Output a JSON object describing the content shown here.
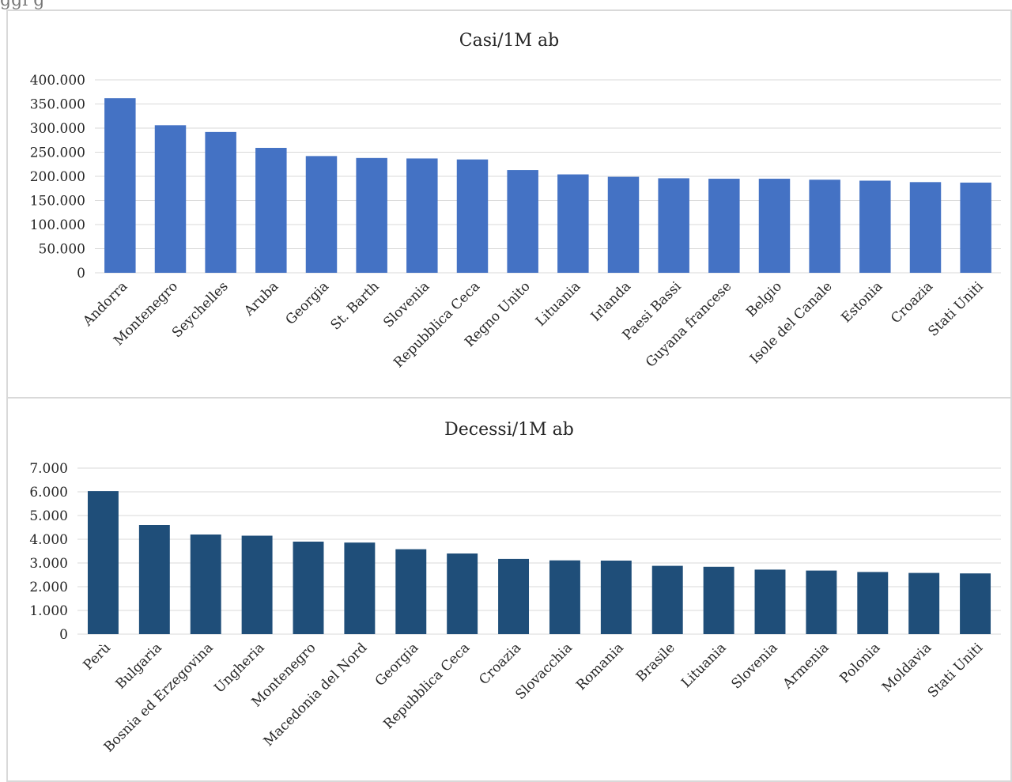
{
  "header_fragment": "ggi                     g",
  "charts": [
    {
      "title": "Casi/1M ab",
      "colors": {
        "bar": "#4472c4",
        "grid": "#d9d9d9",
        "text": "#262626"
      },
      "chart_data": {
        "type": "bar",
        "title": "Casi/1M ab",
        "categories": [
          "Andorra",
          "Montenegro",
          "Seychelles",
          "Aruba",
          "Georgia",
          "St. Barth",
          "Slovenia",
          "Repubblica Ceca",
          "Regno Unito",
          "Lituania",
          "Irlanda",
          "Paesi Bassi",
          "Guyana francese",
          "Belgio",
          "Isole del Canale",
          "Estonia",
          "Croazia",
          "Stati Uniti"
        ],
        "values": [
          362000,
          306000,
          292000,
          259000,
          242000,
          238000,
          237000,
          235000,
          213000,
          204000,
          199000,
          196000,
          195000,
          195000,
          193000,
          191000,
          188000,
          187000
        ],
        "ylim": [
          0,
          400000
        ],
        "yticks": [
          "0",
          "50.000",
          "100.000",
          "150.000",
          "200.000",
          "250.000",
          "300.000",
          "350.000",
          "400.000"
        ],
        "grid": true,
        "legend": "none"
      }
    },
    {
      "title": "Decessi/1M ab",
      "colors": {
        "bar": "#1f4e79",
        "grid": "#d9d9d9",
        "text": "#262626"
      },
      "chart_data": {
        "type": "bar",
        "title": "Decessi/1M ab",
        "categories": [
          "Perù",
          "Bulgaria",
          "Bosnia ed Erzegovina",
          "Ungheria",
          "Montenegro",
          "Macedonia del Nord",
          "Georgia",
          "Repubblica Ceca",
          "Croazia",
          "Slovacchia",
          "Romania",
          "Brasile",
          "Lituania",
          "Slovenia",
          "Armenia",
          "Polonia",
          "Moldavia",
          "Stati Uniti"
        ],
        "values": [
          6030,
          4600,
          4200,
          4150,
          3900,
          3860,
          3580,
          3400,
          3170,
          3110,
          3100,
          2880,
          2840,
          2720,
          2680,
          2620,
          2580,
          2560
        ],
        "ylim": [
          0,
          7000
        ],
        "yticks": [
          "0",
          "1.000",
          "2.000",
          "3.000",
          "4.000",
          "5.000",
          "6.000",
          "7.000"
        ],
        "grid": true,
        "legend": "none"
      }
    }
  ]
}
